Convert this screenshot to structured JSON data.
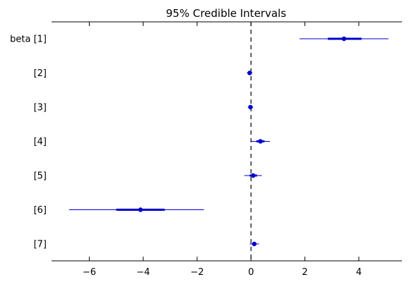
{
  "chart_data": {
    "type": "forest",
    "title": "95% Credible Intervals",
    "xlim": [
      -7.4,
      5.6
    ],
    "xticks": [
      -6,
      -4,
      -2,
      0,
      2,
      4
    ],
    "xtick_labels": [
      "−6",
      "−4",
      "−2",
      "0",
      "2",
      "4"
    ],
    "reference_line": 0,
    "colors": {
      "interval": "#0000cc",
      "reference": "#000000"
    },
    "rows": [
      {
        "label": "beta [1]",
        "median": 3.45,
        "lower95": 1.8,
        "upper95": 5.1,
        "lower50": 2.85,
        "upper50": 4.1
      },
      {
        "label": "[2]",
        "median": -0.05,
        "lower95": -0.15,
        "upper95": 0.05,
        "lower50": -0.1,
        "upper50": 0.0
      },
      {
        "label": "[3]",
        "median": -0.02,
        "lower95": -0.12,
        "upper95": 0.08,
        "lower50": -0.07,
        "upper50": 0.03
      },
      {
        "label": "[4]",
        "median": 0.35,
        "lower95": 0.0,
        "upper95": 0.7,
        "lower50": 0.2,
        "upper50": 0.5
      },
      {
        "label": "[5]",
        "median": 0.08,
        "lower95": -0.25,
        "upper95": 0.4,
        "lower50": -0.05,
        "upper50": 0.22
      },
      {
        "label": "[6]",
        "median": -4.1,
        "lower95": -6.75,
        "upper95": -1.75,
        "lower50": -5.0,
        "upper50": -3.2
      },
      {
        "label": "[7]",
        "median": 0.12,
        "lower95": -0.05,
        "upper95": 0.3,
        "lower50": 0.04,
        "upper50": 0.2
      }
    ]
  }
}
